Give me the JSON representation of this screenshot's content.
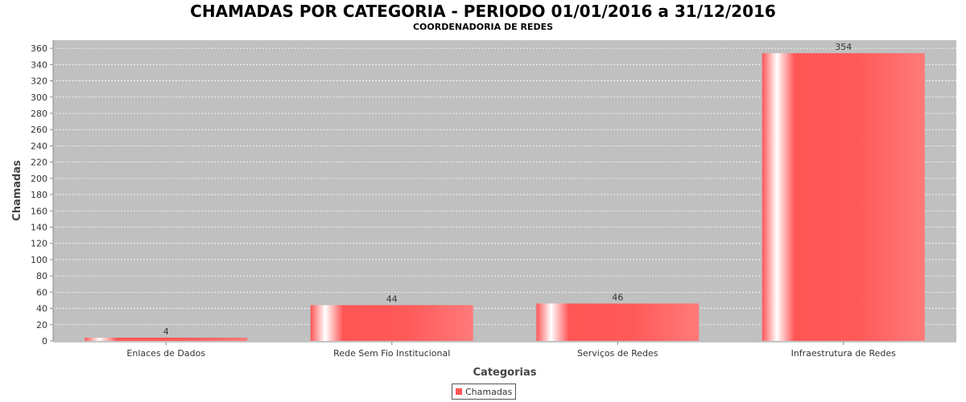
{
  "chart_data": {
    "type": "bar",
    "title": "CHAMADAS POR CATEGORIA - PERIODO 01/01/2016 a 31/12/2016",
    "subtitle": "COORDENADORIA DE REDES",
    "xlabel": "Categorias",
    "ylabel": "Chamadas",
    "categories": [
      "Enlaces de Dados",
      "Rede Sem Fio Institucional",
      "Serviços de Redes",
      "Infraestrutura de Redes"
    ],
    "series": [
      {
        "name": "Chamadas",
        "values": [
          4,
          44,
          46,
          354
        ],
        "color": "#ff5555"
      }
    ],
    "data_labels": [
      "4",
      "44",
      "46",
      "354"
    ],
    "ylim": [
      0,
      370
    ],
    "yticks": [
      0,
      20,
      40,
      60,
      80,
      100,
      120,
      140,
      160,
      180,
      200,
      220,
      240,
      260,
      280,
      300,
      320,
      340,
      360
    ],
    "grid": true,
    "legend_position": "bottom",
    "plot_background": "#c0c0c0"
  }
}
